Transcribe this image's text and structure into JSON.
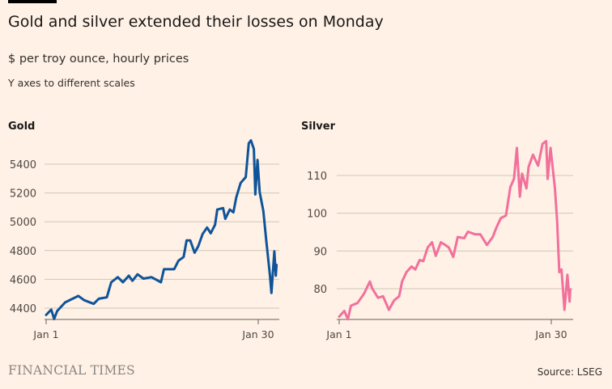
{
  "title": "Gold and silver extended their losses on Monday",
  "subtitle": "$ per troy ounce, hourly prices",
  "note": "Y axes to different scales",
  "footer": {
    "logo": "FINANCIAL TIMES",
    "source": "Source: LSEG"
  },
  "chart_data": [
    {
      "type": "line",
      "title": "Gold",
      "color": "#0F5499",
      "xlabel": "",
      "ylabel": "$ per troy ounce",
      "x_unit": "days since Jan 1",
      "xlim": [
        0,
        31.6
      ],
      "ylim": [
        4320,
        5580
      ],
      "yticks": [
        4400,
        4600,
        4800,
        5000,
        5200,
        5400
      ],
      "xticks": [
        {
          "x": 0,
          "label": "Jan 1"
        },
        {
          "x": 29,
          "label": "Jan 30"
        }
      ],
      "grid": true,
      "x": [
        0,
        0.7,
        1.1,
        1.5,
        2.6,
        4.4,
        5.2,
        6.5,
        7.2,
        8.3,
        8.9,
        9.8,
        10.5,
        11.3,
        11.8,
        12.5,
        13.3,
        14.4,
        15.7,
        16.1,
        17.5,
        18.1,
        18.8,
        19.2,
        19.7,
        20.3,
        20.8,
        21.4,
        22.0,
        22.5,
        23.1,
        23.4,
        24.2,
        24.5,
        25.1,
        25.6,
        26.0,
        26.6,
        27.3,
        27.7,
        28.0,
        28.4,
        28.6,
        28.9,
        29.2,
        29.7,
        30.1,
        30.6,
        30.8,
        31.2,
        31.4,
        31.5
      ],
      "y": [
        4353,
        4390,
        4325,
        4380,
        4440,
        4485,
        4455,
        4430,
        4465,
        4475,
        4580,
        4615,
        4580,
        4625,
        4590,
        4635,
        4605,
        4615,
        4580,
        4670,
        4670,
        4730,
        4755,
        4870,
        4870,
        4785,
        4830,
        4915,
        4960,
        4920,
        4980,
        5085,
        5095,
        5020,
        5085,
        5065,
        5170,
        5270,
        5310,
        5545,
        5565,
        5505,
        5190,
        5430,
        5205,
        5075,
        4870,
        4625,
        4505,
        4795,
        4625,
        4700
      ]
    },
    {
      "type": "line",
      "title": "Silver",
      "color": "#F2709C",
      "xlabel": "",
      "ylabel": "$ per troy ounce",
      "x_unit": "days since Jan 1",
      "xlim": [
        0,
        31.6
      ],
      "ylim": [
        71.2,
        120
      ],
      "yticks": [
        80,
        90,
        100,
        110
      ],
      "xticks": [
        {
          "x": 0,
          "label": "Jan 1"
        },
        {
          "x": 29,
          "label": "Jan 30"
        }
      ],
      "grid": true,
      "x": [
        0,
        0.7,
        1.2,
        1.6,
        2.5,
        3.4,
        4.2,
        4.5,
        5.3,
        6.0,
        6.8,
        7.5,
        8.2,
        8.6,
        9.2,
        9.9,
        10.4,
        11.0,
        11.5,
        12.1,
        12.7,
        13.2,
        13.9,
        14.5,
        15.0,
        15.6,
        16.2,
        17.1,
        17.6,
        18.6,
        19.3,
        20.2,
        21.0,
        21.5,
        22.1,
        22.8,
        23.4,
        23.9,
        24.3,
        24.7,
        25.0,
        25.6,
        25.9,
        26.5,
        27.2,
        27.8,
        28.3,
        28.5,
        28.9,
        29.5,
        29.8,
        30.1,
        30.4,
        30.8,
        31.2,
        31.5,
        31.6
      ],
      "y": [
        72.6,
        74.1,
        71.9,
        75.5,
        76.2,
        78.7,
        81.9,
        80.1,
        77.6,
        78.0,
        74.4,
        76.9,
        78.0,
        81.9,
        84.4,
        85.9,
        85.1,
        87.6,
        87.3,
        90.9,
        92.3,
        88.7,
        92.3,
        91.6,
        90.9,
        88.4,
        93.7,
        93.4,
        95.1,
        94.4,
        94.4,
        91.6,
        93.7,
        96.2,
        98.7,
        99.4,
        106.9,
        109.1,
        117.3,
        104.4,
        110.5,
        106.6,
        112.3,
        115.5,
        112.6,
        118.4,
        119.1,
        109.1,
        117.3,
        106.6,
        98.0,
        84.4,
        85.1,
        74.4,
        83.7,
        76.6,
        79.8
      ]
    }
  ]
}
